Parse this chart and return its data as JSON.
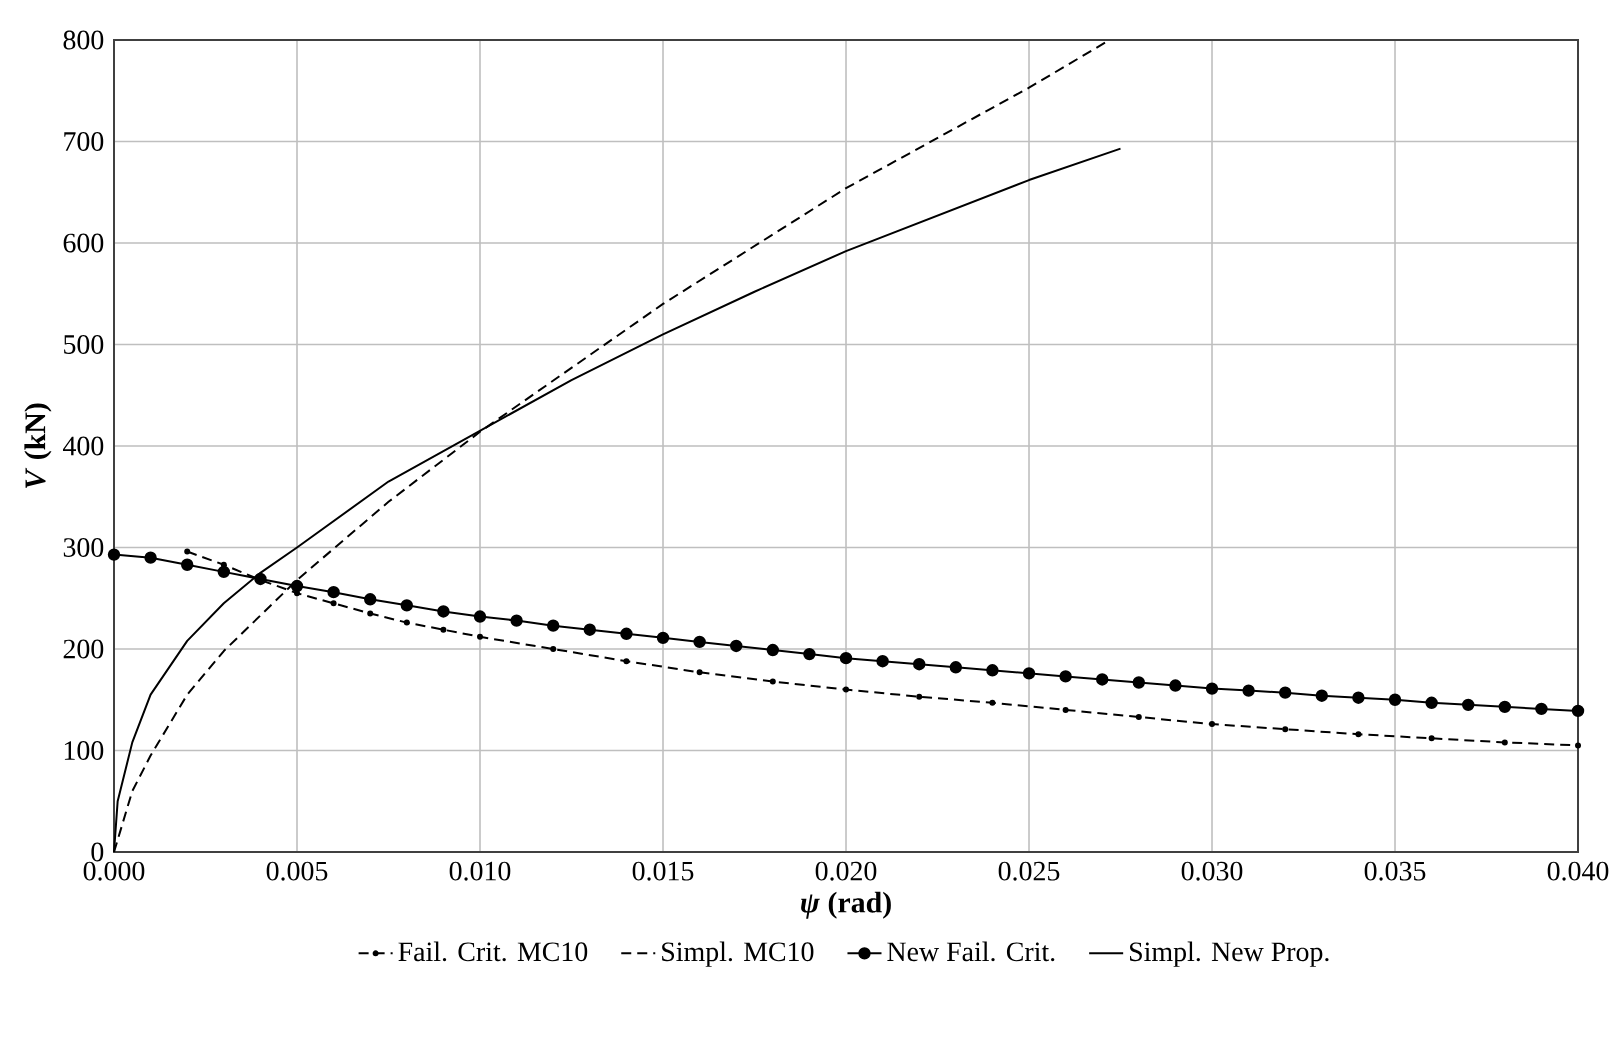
{
  "chart_data": {
    "type": "line",
    "xlabel": "*ψ* (rad)",
    "ylabel": "*V* (kN)",
    "xlim": [
      0,
      0.04
    ],
    "ylim": [
      0,
      800
    ],
    "xticks": [
      {
        "value": 0,
        "label": "0.000"
      },
      {
        "value": 0.005,
        "label": "0.005"
      },
      {
        "value": 0.01,
        "label": "0.010"
      },
      {
        "value": 0.015,
        "label": "0.015"
      },
      {
        "value": 0.02,
        "label": "0.020"
      },
      {
        "value": 0.025,
        "label": "0.025"
      },
      {
        "value": 0.03,
        "label": "0.030"
      },
      {
        "value": 0.035,
        "label": "0.035"
      },
      {
        "value": 0.04,
        "label": "0.040"
      }
    ],
    "yticks": [
      0,
      100,
      200,
      300,
      400,
      500,
      600,
      700,
      800
    ],
    "grid": true,
    "legend": "bottom",
    "series": [
      {
        "name": "Fail. Crit. MC10",
        "color": "#000000",
        "line_style": "dashed",
        "marker": "circle",
        "x": [
          0.002,
          0.003,
          0.004,
          0.005,
          0.006,
          0.007,
          0.008,
          0.009,
          0.01,
          0.012,
          0.014,
          0.016,
          0.018,
          0.02,
          0.022,
          0.024,
          0.026,
          0.028,
          0.03,
          0.032,
          0.034,
          0.036,
          0.038,
          0.04
        ],
        "values": [
          296,
          283,
          268,
          255,
          245,
          235,
          226,
          219,
          212,
          200,
          188,
          177,
          168,
          160,
          153,
          147,
          140,
          133,
          126,
          121,
          116,
          112,
          108,
          105
        ]
      },
      {
        "name": "Simpl. MC10",
        "color": "#000000",
        "line_style": "dashed",
        "marker": "none",
        "x": [
          0,
          0.0005,
          0.001,
          0.002,
          0.003,
          0.005,
          0.0075,
          0.01,
          0.015,
          0.02,
          0.025,
          0.0272
        ],
        "values": [
          0,
          60,
          95,
          155,
          198,
          268,
          345,
          414,
          540,
          654,
          753,
          800
        ]
      },
      {
        "name": "New Fail. Crit.",
        "color": "#000000",
        "line_style": "solid",
        "marker": "circle",
        "x": [
          0,
          0.001,
          0.002,
          0.003,
          0.004,
          0.005,
          0.006,
          0.007,
          0.008,
          0.009,
          0.01,
          0.011,
          0.012,
          0.013,
          0.014,
          0.015,
          0.016,
          0.017,
          0.018,
          0.019,
          0.02,
          0.021,
          0.022,
          0.023,
          0.024,
          0.025,
          0.026,
          0.027,
          0.028,
          0.029,
          0.03,
          0.031,
          0.032,
          0.033,
          0.034,
          0.035,
          0.036,
          0.037,
          0.038,
          0.039,
          0.04
        ],
        "values": [
          293,
          290,
          283,
          276,
          269,
          262,
          256,
          249,
          243,
          237,
          232,
          228,
          223,
          219,
          215,
          211,
          207,
          203,
          199,
          195,
          191,
          188,
          185,
          182,
          179,
          176,
          173,
          170,
          167,
          164,
          161,
          159,
          157,
          154,
          152,
          150,
          147,
          145,
          143,
          141,
          139
        ]
      },
      {
        "name": "Simpl. New Prop.",
        "color": "#000000",
        "line_style": "solid",
        "marker": "none",
        "x": [
          0,
          0.0001,
          0.0005,
          0.001,
          0.002,
          0.003,
          0.004,
          0.005,
          0.0075,
          0.01,
          0.0125,
          0.015,
          0.0175,
          0.02,
          0.025,
          0.0275
        ],
        "values": [
          0,
          50,
          108,
          155,
          208,
          245,
          275,
          300,
          365,
          415,
          465,
          510,
          552,
          592,
          662,
          693
        ]
      }
    ]
  }
}
